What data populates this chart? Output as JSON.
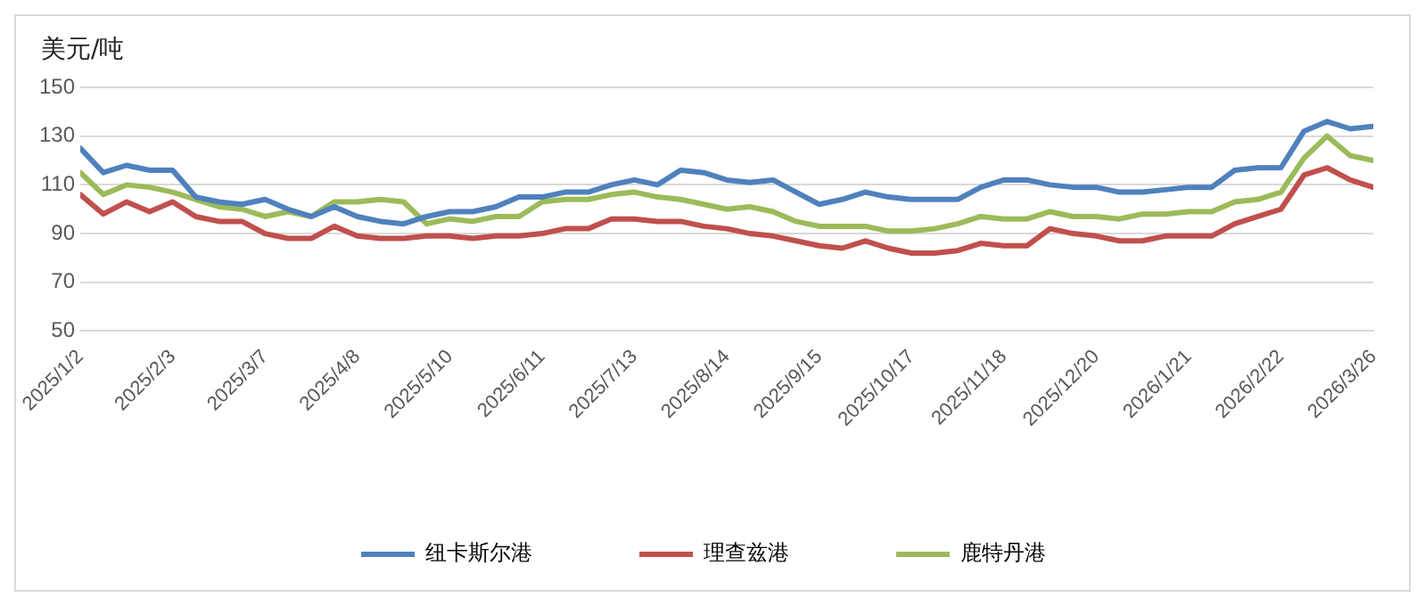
{
  "chart_data": {
    "type": "line",
    "ylabel": "美元/吨",
    "x": [
      "2025-01-02",
      "2025-01-10",
      "2025-01-18",
      "2025-01-26",
      "2025-02-03",
      "2025-02-11",
      "2025-02-19",
      "2025-02-27",
      "2025-03-07",
      "2025-03-15",
      "2025-03-23",
      "2025-03-31",
      "2025-04-08",
      "2025-04-16",
      "2025-04-24",
      "2025-05-02",
      "2025-05-10",
      "2025-05-18",
      "2025-05-26",
      "2025-06-03",
      "2025-06-11",
      "2025-06-19",
      "2025-06-27",
      "2025-07-05",
      "2025-07-13",
      "2025-07-21",
      "2025-07-29",
      "2025-08-06",
      "2025-08-14",
      "2025-08-22",
      "2025-08-30",
      "2025-09-07",
      "2025-09-15",
      "2025-09-23",
      "2025-10-01",
      "2025-10-09",
      "2025-10-17",
      "2025-10-25",
      "2025-11-02",
      "2025-11-10",
      "2025-11-18",
      "2025-11-26",
      "2025-12-04",
      "2025-12-12",
      "2025-12-20",
      "2025-12-28",
      "2026-01-05",
      "2026-01-13",
      "2026-01-21",
      "2026-01-29",
      "2026-02-06",
      "2026-02-14",
      "2026-02-22",
      "2026-03-02",
      "2026-03-10",
      "2026-03-18",
      "2026-03-26"
    ],
    "series": [
      {
        "name": "纽卡斯尔港",
        "color": "#4f81bd",
        "values": [
          125,
          115,
          118,
          116,
          116,
          105,
          103,
          102,
          104,
          100,
          97,
          101,
          97,
          95,
          94,
          97,
          99,
          99,
          101,
          105,
          105,
          107,
          107,
          110,
          112,
          110,
          116,
          115,
          112,
          111,
          112,
          107,
          102,
          104,
          107,
          105,
          104,
          104,
          104,
          109,
          112,
          112,
          110,
          109,
          109,
          107,
          107,
          108,
          109,
          109,
          116,
          117,
          117,
          132,
          136,
          133,
          134
        ]
      },
      {
        "name": "理查兹港",
        "color": "#c0504d",
        "values": [
          106,
          98,
          103,
          99,
          103,
          97,
          95,
          95,
          90,
          88,
          88,
          93,
          89,
          88,
          88,
          89,
          89,
          88,
          89,
          89,
          90,
          92,
          92,
          96,
          96,
          95,
          95,
          93,
          92,
          90,
          89,
          87,
          85,
          84,
          87,
          84,
          82,
          82,
          83,
          86,
          85,
          85,
          92,
          90,
          89,
          87,
          87,
          89,
          89,
          89,
          94,
          97,
          100,
          114,
          117,
          112,
          109
        ]
      },
      {
        "name": "鹿特丹港",
        "color": "#9bbb59",
        "values": [
          115,
          106,
          110,
          109,
          107,
          104,
          101,
          100,
          97,
          99,
          97,
          103,
          103,
          104,
          103,
          94,
          96,
          95,
          97,
          97,
          103,
          104,
          104,
          106,
          107,
          105,
          104,
          102,
          100,
          101,
          99,
          95,
          93,
          93,
          93,
          91,
          91,
          92,
          94,
          97,
          96,
          96,
          99,
          97,
          97,
          96,
          98,
          98,
          99,
          99,
          103,
          104,
          107,
          121,
          130,
          122,
          120
        ]
      }
    ],
    "xlim": [
      "2025-01-02",
      "2026-03-26"
    ],
    "xticks": [
      {
        "value": "2025-01-02",
        "label": "2025/1/2"
      },
      {
        "value": "2025-02-03",
        "label": "2025/2/3"
      },
      {
        "value": "2025-03-07",
        "label": "2025/3/7"
      },
      {
        "value": "2025-04-08",
        "label": "2025/4/8"
      },
      {
        "value": "2025-05-10",
        "label": "2025/5/10"
      },
      {
        "value": "2025-06-11",
        "label": "2025/6/11"
      },
      {
        "value": "2025-07-13",
        "label": "2025/7/13"
      },
      {
        "value": "2025-08-14",
        "label": "2025/8/14"
      },
      {
        "value": "2025-09-15",
        "label": "2025/9/15"
      },
      {
        "value": "2025-10-17",
        "label": "2025/10/17"
      },
      {
        "value": "2025-11-18",
        "label": "2025/11/18"
      },
      {
        "value": "2025-12-20",
        "label": "2025/12/20"
      },
      {
        "value": "2026-01-21",
        "label": "2026/1/21"
      },
      {
        "value": "2026-02-22",
        "label": "2026/2/22"
      },
      {
        "value": "2026-03-26",
        "label": "2026/3/26"
      }
    ],
    "ylim": [
      50,
      150
    ],
    "yticks": [
      50,
      70,
      90,
      110,
      130,
      150
    ],
    "grid": "y",
    "legend": "bottom",
    "marker": "none",
    "line_style": "solid"
  }
}
